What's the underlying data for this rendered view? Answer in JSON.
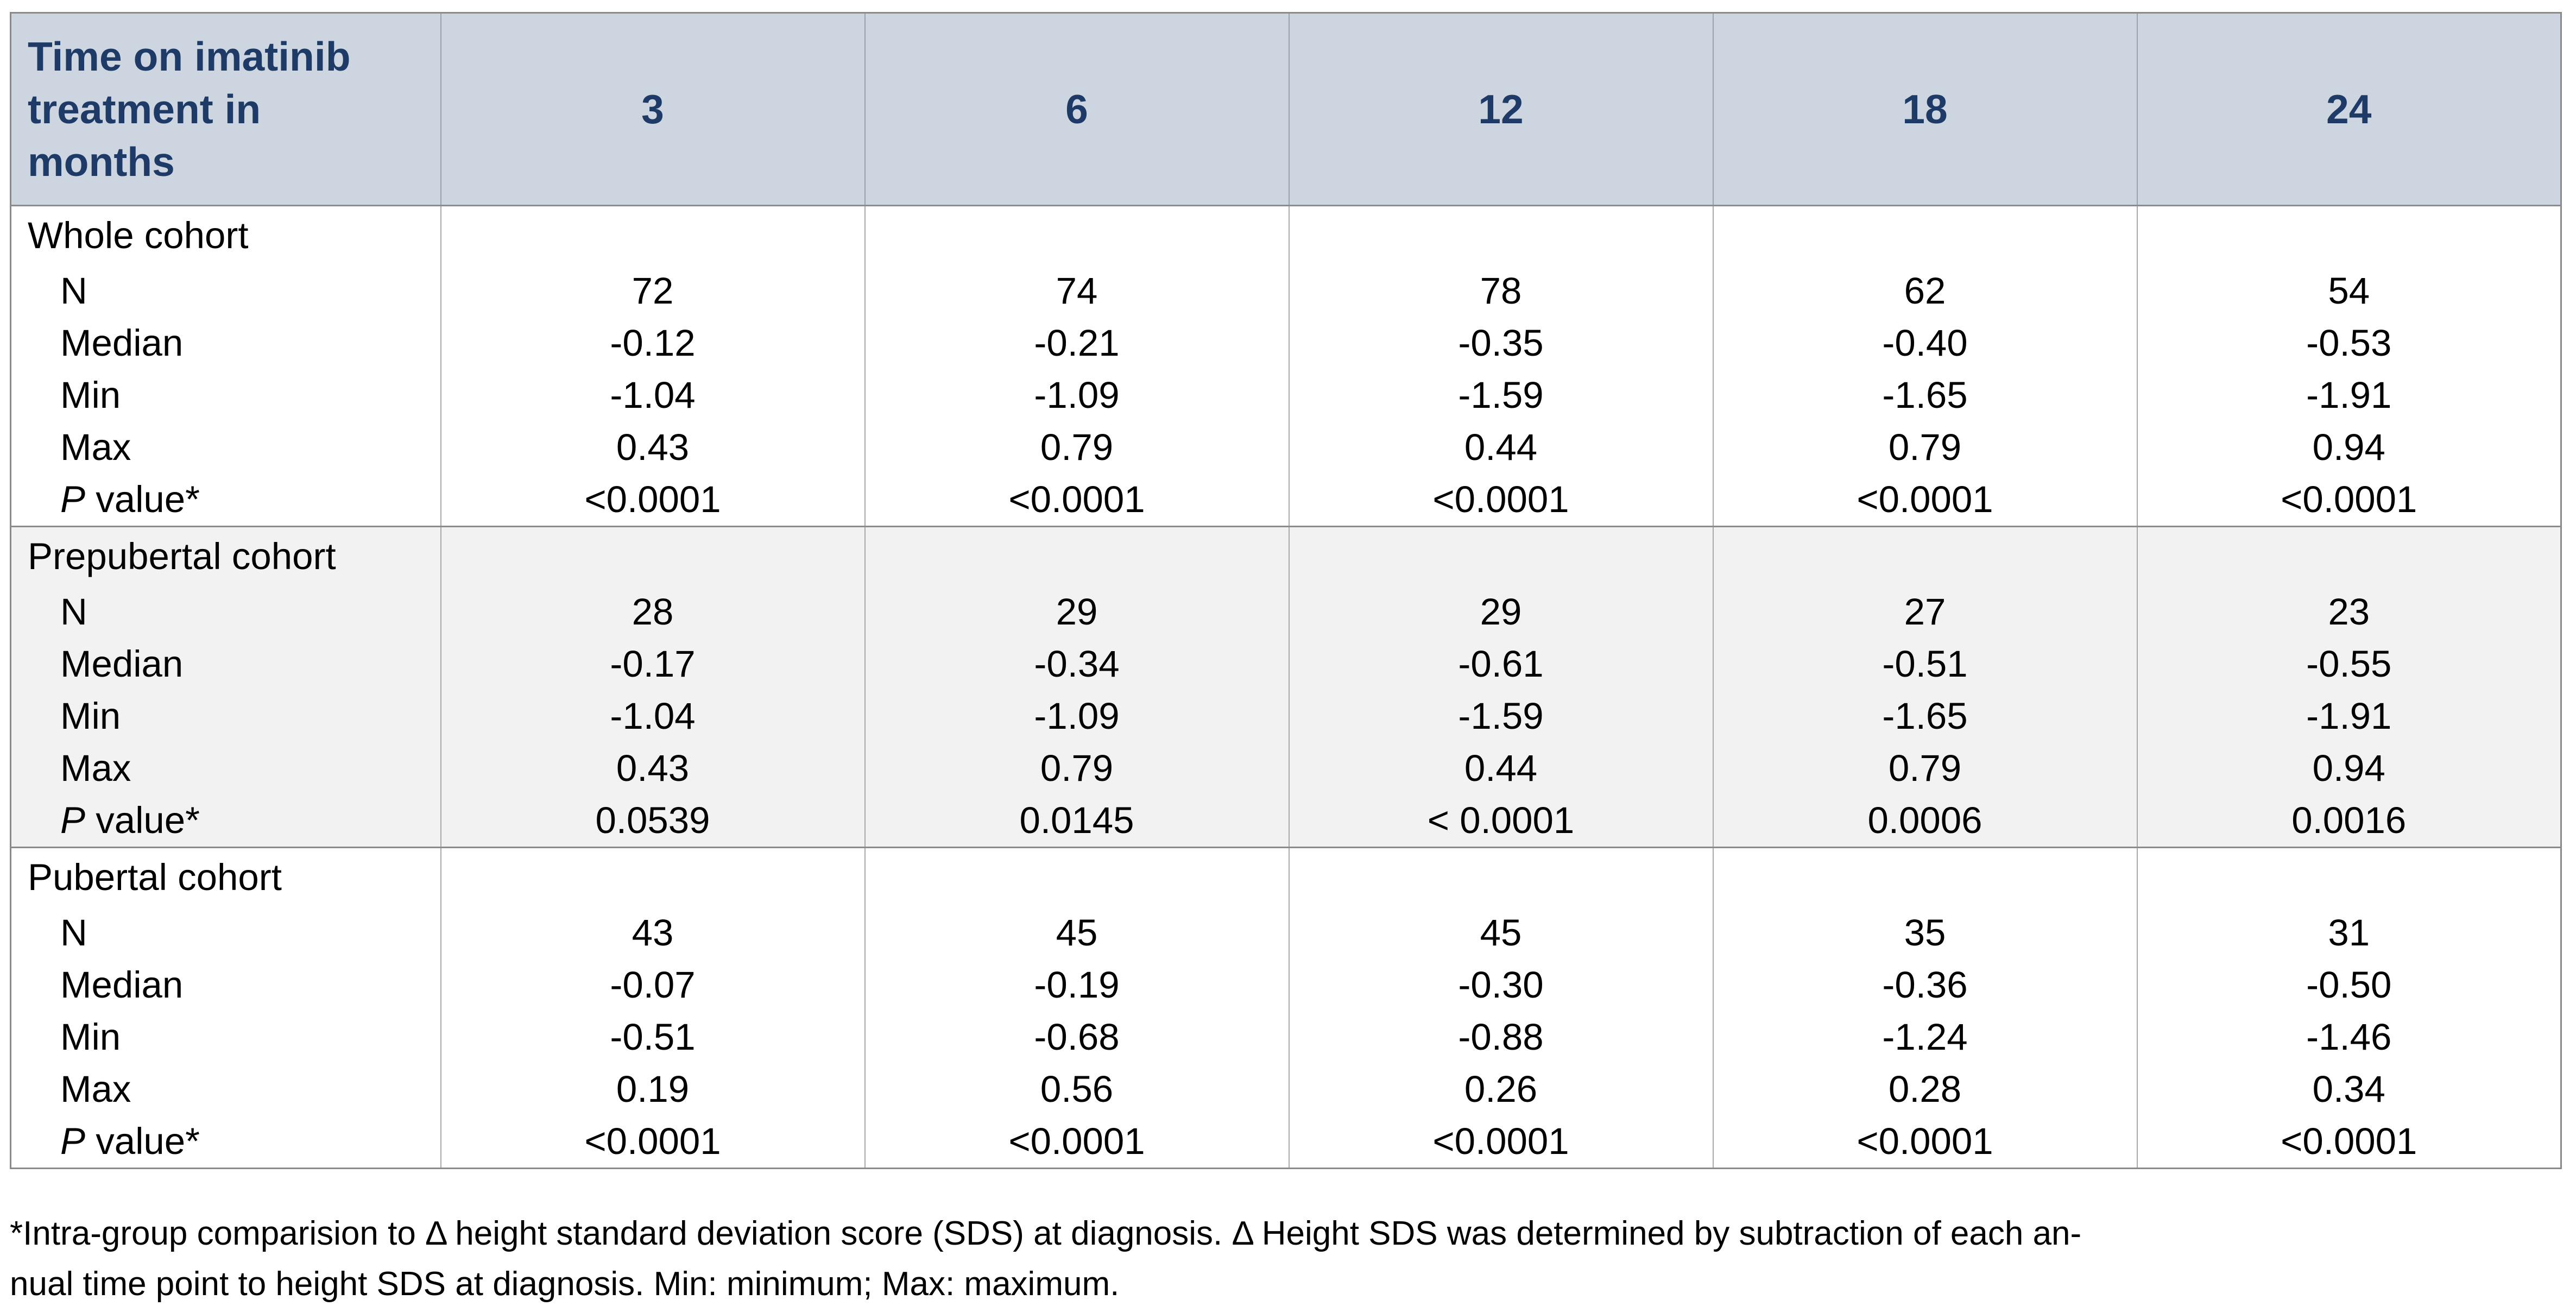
{
  "colors": {
    "header_bg": "#cdd6e0",
    "header_text": "#1e3a66",
    "body_text": "#000000",
    "stripe_bg": "#f2f2f2",
    "outer_border": "#8a8a8a",
    "section_border": "#8c8c8c",
    "column_border": "#a9a9a9"
  },
  "table": {
    "corner_label": "Time on imatinib treatment in months",
    "time_columns": [
      "3",
      "6",
      "12",
      "18",
      "24"
    ],
    "sections": [
      {
        "label": "Whole cohort",
        "striped": false,
        "rows": [
          {
            "label": "N",
            "cells": [
              "72",
              "74",
              "78",
              "62",
              "54"
            ]
          },
          {
            "label": "Median",
            "cells": [
              "-0.12",
              "-0.21",
              "-0.35",
              "-0.40",
              "-0.53"
            ]
          },
          {
            "label": "Min",
            "cells": [
              "-1.04",
              "-1.09",
              "-1.59",
              "-1.65",
              "-1.91"
            ]
          },
          {
            "label": "Max",
            "cells": [
              "0.43",
              "0.79",
              "0.44",
              "0.79",
              "0.94"
            ]
          },
          {
            "label_italic": "P",
            "label_rest": " value*",
            "cells": [
              "<0.0001",
              "<0.0001",
              "<0.0001",
              "<0.0001",
              "<0.0001"
            ]
          }
        ]
      },
      {
        "label": "Prepubertal cohort",
        "striped": true,
        "rows": [
          {
            "label": "N",
            "cells": [
              "28",
              "29",
              "29",
              "27",
              "23"
            ]
          },
          {
            "label": "Median",
            "cells": [
              "-0.17",
              "-0.34",
              "-0.61",
              "-0.51",
              "-0.55"
            ]
          },
          {
            "label": "Min",
            "cells": [
              "-1.04",
              "-1.09",
              "-1.59",
              "-1.65",
              "-1.91"
            ]
          },
          {
            "label": "Max",
            "cells": [
              "0.43",
              "0.79",
              "0.44",
              "0.79",
              "0.94"
            ]
          },
          {
            "label_italic": "P",
            "label_rest": " value*",
            "cells": [
              "0.0539",
              "0.0145",
              "< 0.0001",
              "0.0006",
              "0.0016"
            ]
          }
        ]
      },
      {
        "label": "Pubertal cohort",
        "striped": false,
        "rows": [
          {
            "label": "N",
            "cells": [
              "43",
              "45",
              "45",
              "35",
              "31"
            ]
          },
          {
            "label": "Median",
            "cells": [
              "-0.07",
              "-0.19",
              "-0.30",
              "-0.36",
              "-0.50"
            ]
          },
          {
            "label": "Min",
            "cells": [
              "-0.51",
              "-0.68",
              "-0.88",
              "-1.24",
              "-1.46"
            ]
          },
          {
            "label": "Max",
            "cells": [
              "0.19",
              "0.56",
              "0.26",
              "0.28",
              "0.34"
            ]
          },
          {
            "label_italic": "P",
            "label_rest": " value*",
            "cells": [
              "<0.0001",
              "<0.0001",
              "<0.0001",
              "<0.0001",
              "<0.0001"
            ]
          }
        ]
      }
    ]
  },
  "footnote": {
    "line1": "*Intra-group comparision to Δ height standard deviation score (SDS) at diagnosis. Δ Height SDS was determined by subtraction of each an-",
    "line2": "nual time point to height SDS at diagnosis. Min: minimum; Max: maximum."
  }
}
